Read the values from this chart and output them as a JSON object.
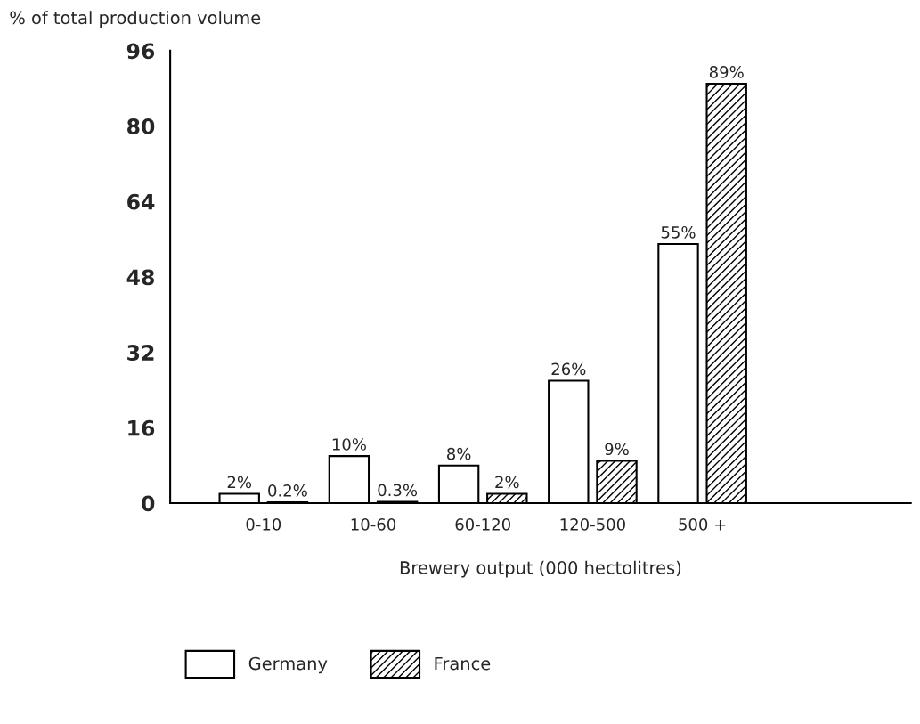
{
  "chart_data": {
    "type": "bar",
    "xlabel": "Brewery output (000 hectolitres)",
    "ylabel": "% of total production volume",
    "categories": [
      "0-10",
      "10-60",
      "60-120",
      "120-500",
      "500 +"
    ],
    "series": [
      {
        "name": "Germany",
        "color": "#ffffff",
        "values": [
          2,
          10,
          8,
          26,
          55
        ],
        "value_labels": [
          "2%",
          "10%",
          "8%",
          "26%",
          "55%"
        ]
      },
      {
        "name": "France",
        "color": "#000000",
        "values": [
          0.2,
          0.3,
          2,
          9,
          89
        ],
        "value_labels": [
          "0.2%",
          "0.3%",
          "2%",
          "9%",
          "89%"
        ]
      }
    ],
    "ylim": [
      0,
      96
    ],
    "yticks": [
      0,
      16,
      32,
      48,
      64,
      80,
      96
    ],
    "grid": false,
    "legend": "bottom left"
  }
}
